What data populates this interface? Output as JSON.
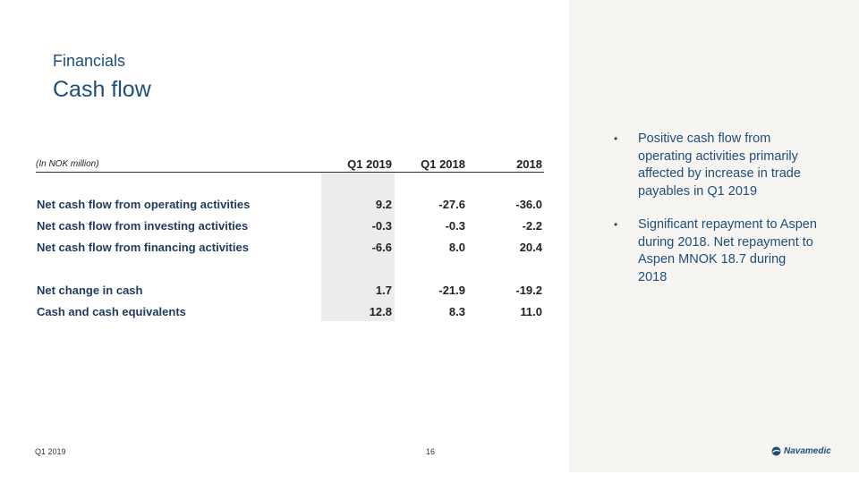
{
  "section": "Financials",
  "title": "Cash flow",
  "table": {
    "units": "(In NOK million)",
    "columns": [
      "Q1 2019",
      "Q1 2018",
      "2018"
    ],
    "rows": [
      {
        "label": "Net cash flow from operating activities",
        "values": [
          "9.2",
          "-27.6",
          "-36.0"
        ]
      },
      {
        "label": "Net cash flow from investing activities",
        "values": [
          "-0.3",
          "-0.3",
          "-2.2"
        ]
      },
      {
        "label": "Net cash flow from financing activities",
        "values": [
          "-6.6",
          "8.0",
          "20.4"
        ]
      },
      {
        "label": "Net change in cash",
        "values": [
          "1.7",
          "-21.9",
          "-19.2"
        ]
      },
      {
        "label": "Cash and cash equivalents",
        "values": [
          "12.8",
          "8.3",
          "11.0"
        ]
      }
    ]
  },
  "bullets": [
    {
      "dot": "•",
      "text": "Positive cash flow from operating activities primarily affected by increase in trade payables in Q1 2019"
    },
    {
      "dot": "•",
      "text": "Significant repayment to Aspen during 2018. Net repayment to Aspen MNOK 18.7 during 2018"
    }
  ],
  "footer": {
    "period": "Q1 2019",
    "page": "16"
  },
  "logo": {
    "name": "Navamedic"
  },
  "colors": {
    "brand": "#1f4e79",
    "panel": "#f6f5f2",
    "shade": "#ececec"
  }
}
